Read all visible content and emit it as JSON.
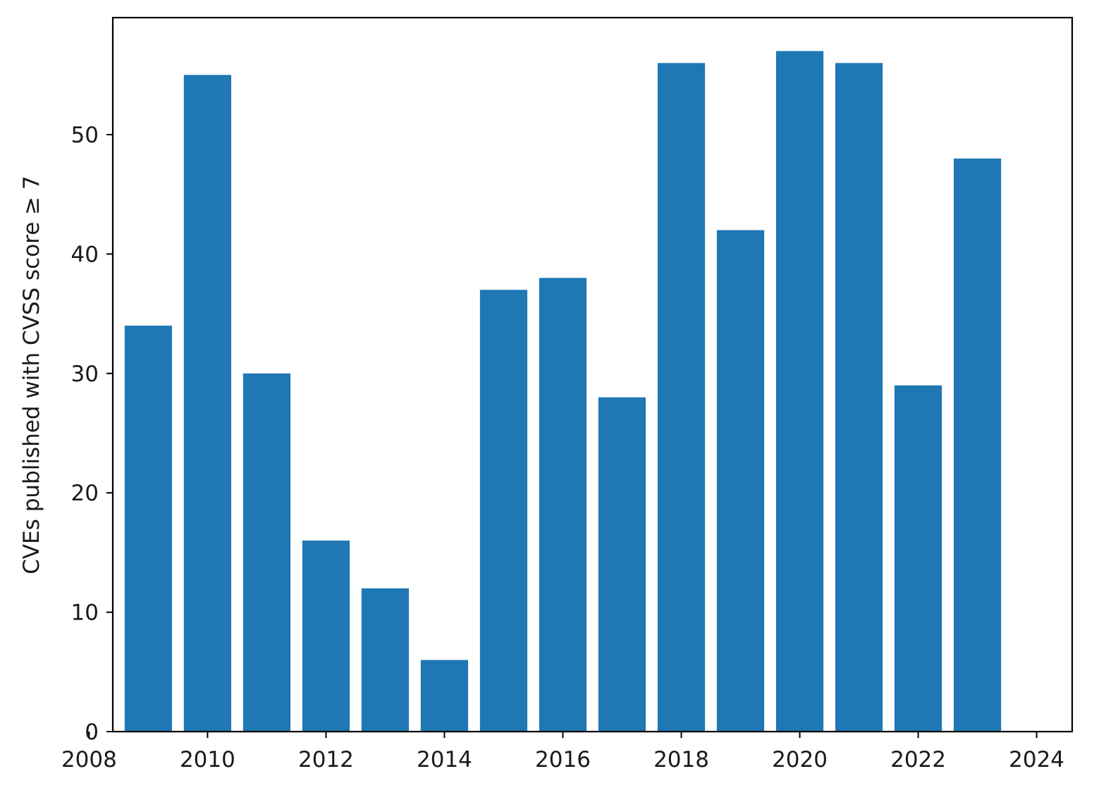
{
  "chart_data": {
    "type": "bar",
    "title": "",
    "xlabel": "",
    "ylabel": "CVEs published with CVSS score ≥ 7",
    "x": [
      2009,
      2010,
      2011,
      2012,
      2013,
      2014,
      2015,
      2016,
      2017,
      2018,
      2019,
      2020,
      2021,
      2022,
      2023
    ],
    "values": [
      34,
      55,
      30,
      16,
      12,
      6,
      37,
      38,
      28,
      56,
      42,
      57,
      56,
      29,
      48
    ],
    "xlim": [
      2008.4,
      2024.6
    ],
    "ylim": [
      0,
      59.8
    ],
    "xticks": [
      "2008",
      "2010",
      "2012",
      "2014",
      "2016",
      "2018",
      "2020",
      "2022",
      "2024"
    ],
    "yticks": [
      "0",
      "10",
      "20",
      "30",
      "40",
      "50"
    ],
    "bar_color": "#1f77b4",
    "grid": false,
    "legend": "none"
  }
}
